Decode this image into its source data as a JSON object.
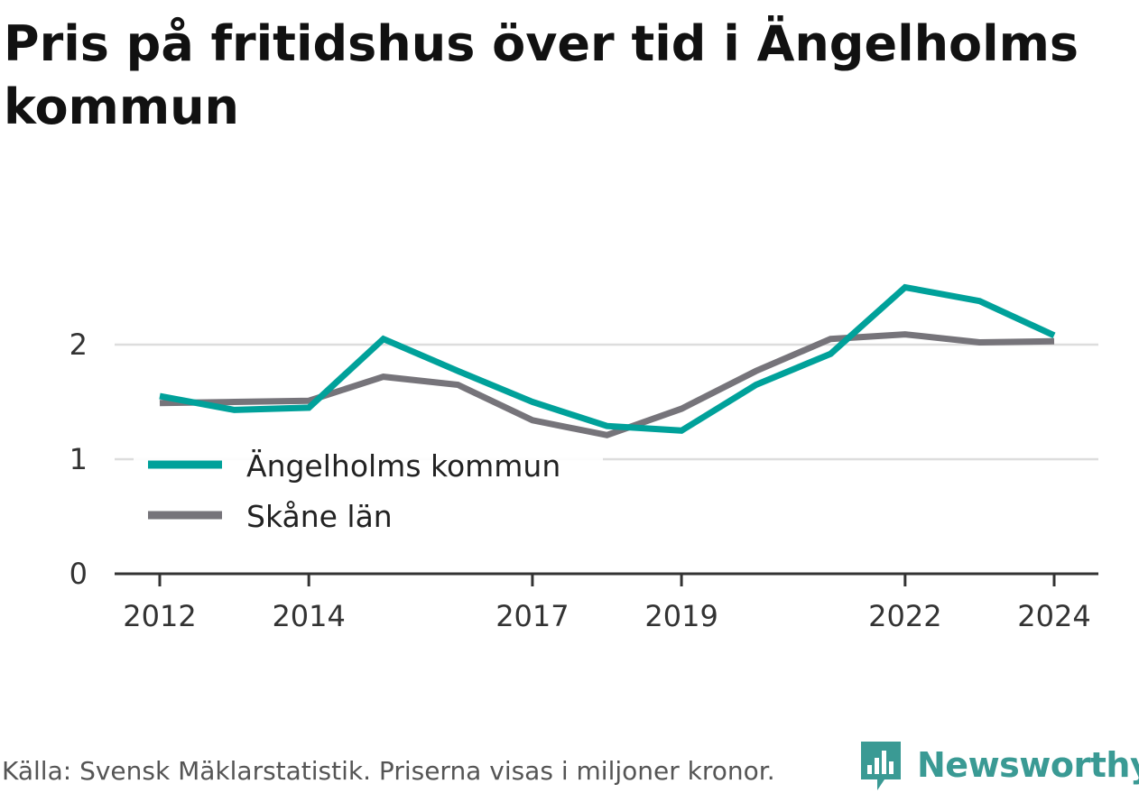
{
  "chart_data": {
    "type": "line",
    "title": "Pris på fritidshus över tid i Ängelholms kommun",
    "x": [
      2012,
      2013,
      2014,
      2015,
      2016,
      2017,
      2018,
      2019,
      2020,
      2021,
      2022,
      2023,
      2024
    ],
    "x_ticks": [
      "2012",
      "2014",
      "2017",
      "2019",
      "2022",
      "2024"
    ],
    "y_ticks": [
      "0",
      "1",
      "2"
    ],
    "ylim": [
      0,
      2.7
    ],
    "grid": true,
    "legend_placement": "bottom-left",
    "series": [
      {
        "name": "Ängelholms kommun",
        "color": "#00a19a",
        "values": [
          1.55,
          1.43,
          1.45,
          2.05,
          1.77,
          1.5,
          1.29,
          1.25,
          1.65,
          1.92,
          2.5,
          2.38,
          2.08
        ]
      },
      {
        "name": "Skåne län",
        "color": "#76747a",
        "values": [
          1.49,
          1.5,
          1.51,
          1.72,
          1.65,
          1.34,
          1.21,
          1.44,
          1.77,
          2.05,
          2.09,
          2.02,
          2.03
        ]
      }
    ]
  },
  "footer": {
    "source": "Källa: Svensk Mäklarstatistik. Priserna visas i miljoner kronor.",
    "brand": "Newsworthy",
    "brand_color": "#3a9a94",
    "logo_icon": "bar-chart-speech-bubble-icon"
  }
}
